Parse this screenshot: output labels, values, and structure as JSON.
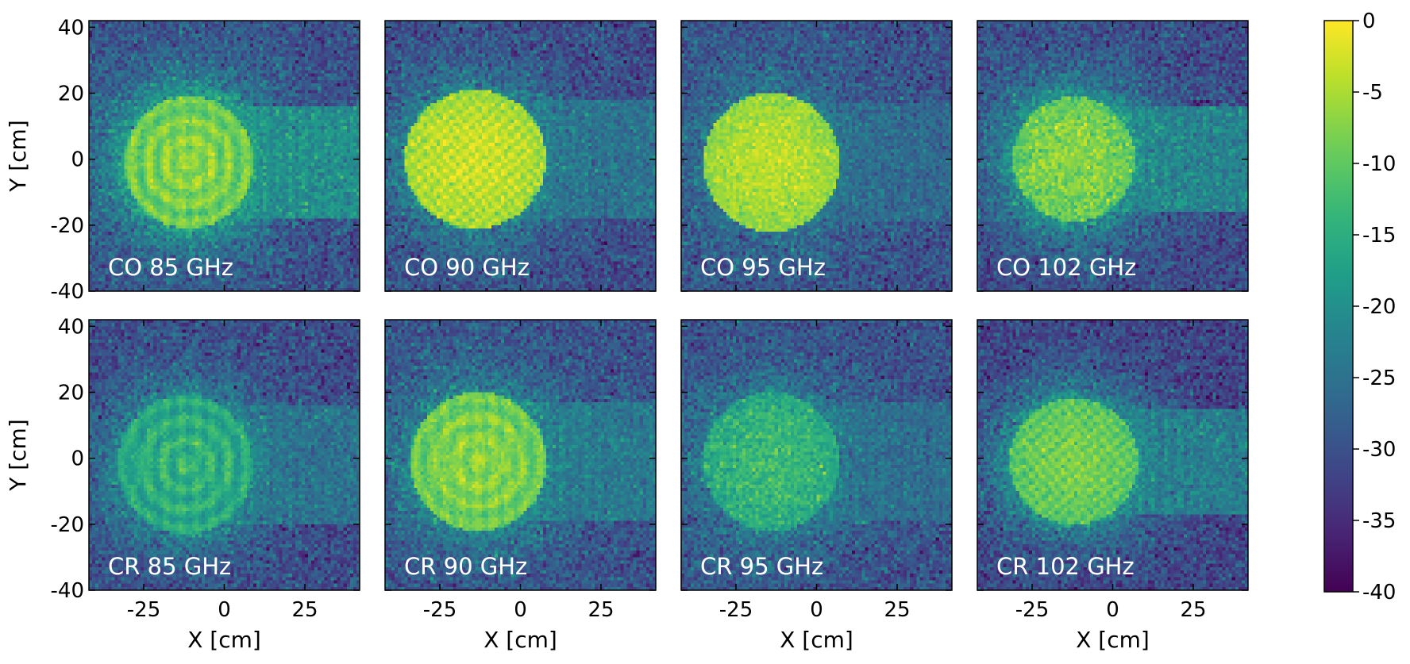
{
  "chart_data": {
    "type": "heatmap",
    "colormap": "viridis",
    "grid": false,
    "layout": "2 rows x 4 columns",
    "xlabel": "X [cm]",
    "ylabel": "Y [cm]",
    "xlim": [
      -42,
      42
    ],
    "ylim": [
      -40,
      42
    ],
    "xticks": [
      -25,
      0,
      25
    ],
    "yticks": [
      -40,
      -20,
      0,
      20,
      40
    ],
    "pixel_size_cm": 1,
    "colorbar": {
      "range": [
        -40,
        0
      ],
      "ticks": [
        0,
        -5,
        -10,
        -15,
        -20,
        -25,
        -30,
        -35,
        -40
      ]
    },
    "panels": [
      {
        "label": "CO 85 GHz",
        "row": 0,
        "col": 0,
        "beam": {
          "center": [
            -11,
            -1
          ],
          "radius": [
            20,
            20
          ],
          "peak": -7,
          "pattern": "rings",
          "fringe_strength": 0.5,
          "sidelobe": -17,
          "noise_floor": -30
        }
      },
      {
        "label": "CO 90 GHz",
        "row": 0,
        "col": 1,
        "beam": {
          "center": [
            -14,
            0
          ],
          "radius": [
            22,
            21
          ],
          "peak": -3,
          "pattern": "checker",
          "fringe_strength": 0.45,
          "sidelobe": -22,
          "noise_floor": -31
        }
      },
      {
        "label": "CO 95 GHz",
        "row": 0,
        "col": 2,
        "beam": {
          "center": [
            -14,
            -1
          ],
          "radius": [
            21,
            21
          ],
          "peak": -4,
          "pattern": "speckle",
          "fringe_strength": 0.2,
          "sidelobe": -24,
          "noise_floor": -30
        }
      },
      {
        "label": "CO 102 GHz",
        "row": 0,
        "col": 3,
        "beam": {
          "center": [
            -12,
            0
          ],
          "radius": [
            19,
            19
          ],
          "peak": -7,
          "pattern": "speckle",
          "fringe_strength": 0.35,
          "sidelobe": -19,
          "noise_floor": -31
        }
      },
      {
        "label": "CR 85 GHz",
        "row": 1,
        "col": 0,
        "beam": {
          "center": [
            -12,
            -2
          ],
          "radius": [
            21,
            21
          ],
          "peak": -14,
          "pattern": "rings",
          "fringe_strength": 0.6,
          "sidelobe": -22,
          "noise_floor": -31
        }
      },
      {
        "label": "CR 90 GHz",
        "row": 1,
        "col": 1,
        "beam": {
          "center": [
            -13,
            -1
          ],
          "radius": [
            21,
            21
          ],
          "peak": -7,
          "pattern": "rings",
          "fringe_strength": 0.45,
          "sidelobe": -21,
          "noise_floor": -30
        }
      },
      {
        "label": "CR 95 GHz",
        "row": 1,
        "col": 2,
        "beam": {
          "center": [
            -14,
            -1
          ],
          "radius": [
            21,
            21
          ],
          "peak": -13,
          "pattern": "speckle",
          "fringe_strength": 0.35,
          "sidelobe": -23,
          "noise_floor": -30
        }
      },
      {
        "label": "CR 102 GHz",
        "row": 1,
        "col": 3,
        "beam": {
          "center": [
            -12,
            -1
          ],
          "radius": [
            20,
            19
          ],
          "peak": -8,
          "pattern": "checker",
          "fringe_strength": 0.4,
          "sidelobe": -20,
          "noise_floor": -32
        }
      }
    ]
  }
}
